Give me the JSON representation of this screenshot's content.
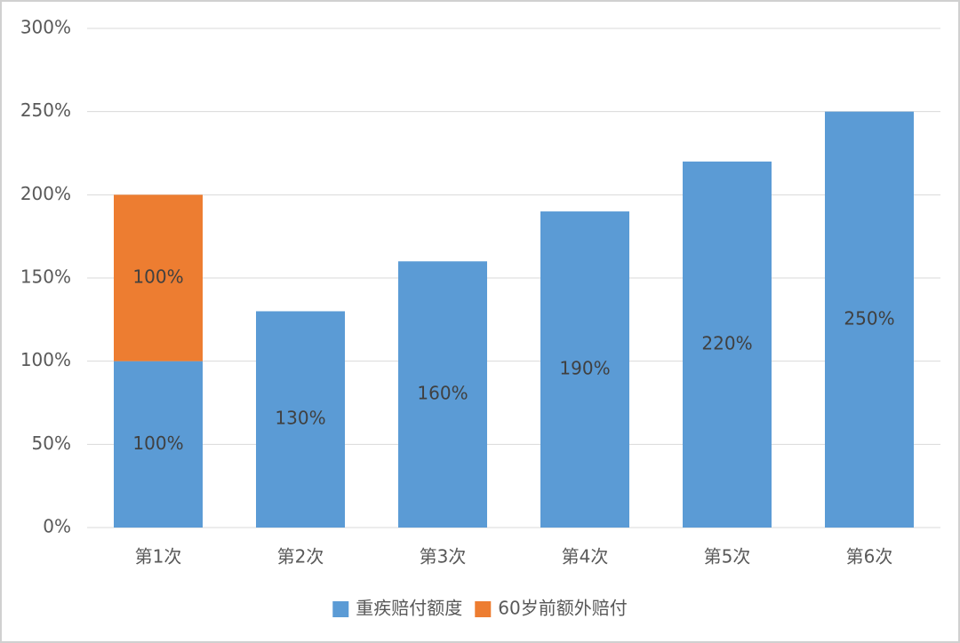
{
  "chart_data": {
    "type": "stacked-bar",
    "categories": [
      "第1次",
      "第2次",
      "第3次",
      "第4次",
      "第5次",
      "第6次"
    ],
    "series": [
      {
        "name": "重疾赔付额度",
        "color": "#5b9bd5",
        "values": [
          100,
          130,
          160,
          190,
          220,
          250
        ],
        "value_labels": [
          "100%",
          "130%",
          "160%",
          "190%",
          "220%",
          "250%"
        ]
      },
      {
        "name": "60岁前额外赔付",
        "color": "#ed7d31",
        "values": [
          100,
          null,
          null,
          null,
          null,
          null
        ],
        "value_labels": [
          "100%",
          null,
          null,
          null,
          null,
          null
        ]
      }
    ],
    "ylim": [
      0,
      300
    ],
    "yticks": [
      {
        "value": 0,
        "label": "0%"
      },
      {
        "value": 50,
        "label": "50%"
      },
      {
        "value": 100,
        "label": "100%"
      },
      {
        "value": 150,
        "label": "150%"
      },
      {
        "value": 200,
        "label": "200%"
      },
      {
        "value": 250,
        "label": "250%"
      },
      {
        "value": 300,
        "label": "300%"
      }
    ],
    "grid": true,
    "legend": "bottom"
  }
}
